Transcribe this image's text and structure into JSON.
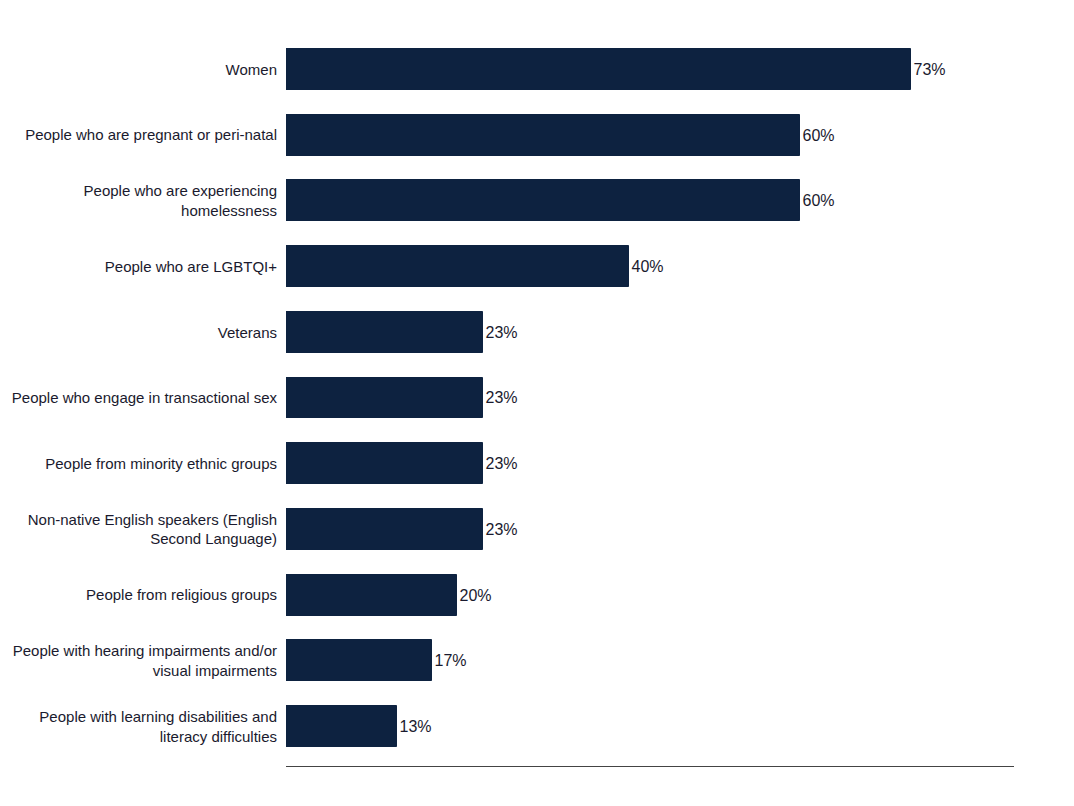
{
  "chart_data": {
    "type": "bar",
    "orientation": "horizontal",
    "categories": [
      "People with learning disabilities and\nliteracy difficulties",
      "People with hearing impairments and/or\nvisual impairments",
      "People from religious groups",
      "Non-native English speakers (English\nSecond Language)",
      "People from minority ethnic groups",
      "People who engage in transactional sex",
      "Veterans",
      "People who are LGBTQI+",
      "People who are experiencing\nhomelessness",
      "People who are pregnant or peri-natal",
      "Women"
    ],
    "values": [
      13,
      17,
      20,
      23,
      23,
      23,
      23,
      40,
      60,
      60,
      73
    ],
    "value_labels": [
      "13%",
      "17%",
      "20%",
      "23%",
      "23%",
      "23%",
      "23%",
      "40%",
      "60%",
      "60%",
      "73%"
    ],
    "data_labels": true,
    "color": "#0d2240",
    "xlim": [
      0,
      85
    ],
    "grid": false,
    "tick_labels": "y"
  }
}
